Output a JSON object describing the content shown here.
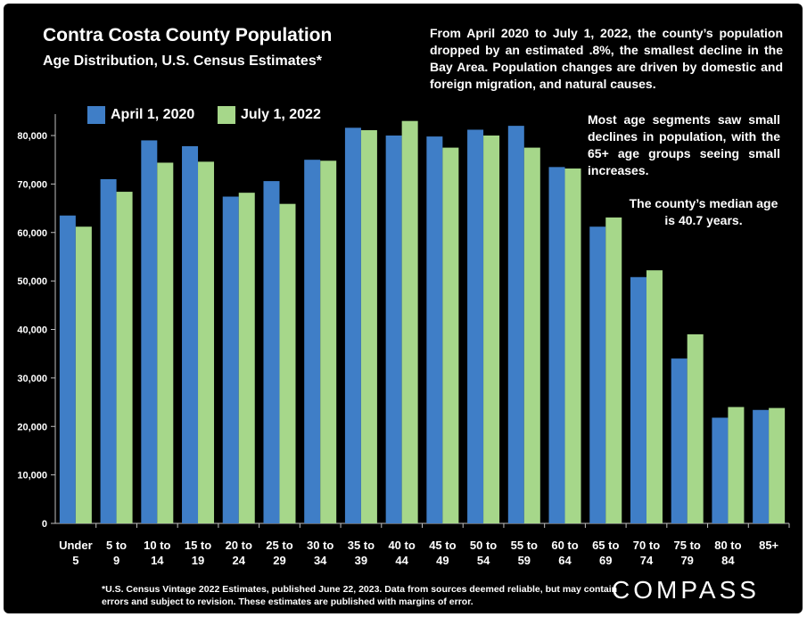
{
  "header": {
    "title": "Contra Costa County Population",
    "subtitle": "Age Distribution, U.S. Census Estimates*"
  },
  "notes": {
    "paragraph1": "From April 2020 to July 1, 2022, the county’s population dropped by an estimated .8%, the smallest decline in the Bay Area. Population changes are driven by domestic and foreign migration, and  natural causes.",
    "paragraph2": "Most age segments saw small declines in population, with the 65+ age groups seeing small increases.",
    "paragraph3": "The county’s median age is 40.7 years."
  },
  "footer": {
    "footnote": "*U.S. Census Vintage 2022 Estimates, published June 22, 2023. Data from sources deemed reliable, but may contain errors and subject to revision. These estimates are published with margins of error.",
    "logo_text": "COMPASS"
  },
  "colors": {
    "background": "#000000",
    "series_2020": "#3f7ec7",
    "series_2022": "#a6d78a",
    "axis_text": "#ffffff"
  },
  "chart_data": {
    "type": "bar",
    "title": "Contra Costa County Population",
    "subtitle": "Age Distribution, U.S. Census Estimates*",
    "categories": [
      [
        "Under",
        "5"
      ],
      [
        "5 to",
        "9"
      ],
      [
        "10 to",
        "14"
      ],
      [
        "15 to",
        "19"
      ],
      [
        "20 to",
        "24"
      ],
      [
        "25 to",
        "29"
      ],
      [
        "30 to",
        "34"
      ],
      [
        "35 to",
        "39"
      ],
      [
        "40 to",
        "44"
      ],
      [
        "45 to",
        "49"
      ],
      [
        "50 to",
        "54"
      ],
      [
        "55 to",
        "59"
      ],
      [
        "60 to",
        "64"
      ],
      [
        "65 to",
        "69"
      ],
      [
        "70 to",
        "74"
      ],
      [
        "75 to",
        "79"
      ],
      [
        "80 to",
        "84"
      ],
      [
        "85+"
      ]
    ],
    "series": [
      {
        "name": "April 1, 2020",
        "color": "#3f7ec7",
        "values": [
          63500,
          71000,
          79000,
          77800,
          67400,
          70600,
          75000,
          81600,
          80000,
          79800,
          81200,
          82000,
          73500,
          61200,
          50800,
          34000,
          21800,
          23400
        ]
      },
      {
        "name": "July 1, 2022",
        "color": "#a6d78a",
        "values": [
          61200,
          68400,
          74400,
          74600,
          68200,
          65900,
          74800,
          81100,
          83000,
          77500,
          80000,
          77500,
          73200,
          63100,
          52200,
          39000,
          24000,
          23800
        ]
      }
    ],
    "ylim": [
      0,
      80000
    ],
    "ytick_step": 10000,
    "yticks": [
      "0",
      "10,000",
      "20,000",
      "30,000",
      "40,000",
      "50,000",
      "60,000",
      "70,000",
      "80,000"
    ],
    "grid": false,
    "legend_position": "top-left"
  }
}
